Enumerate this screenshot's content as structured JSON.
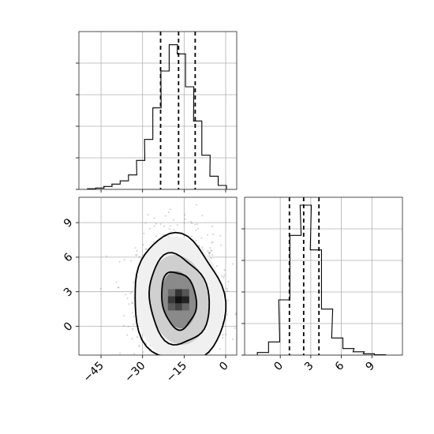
{
  "chart_data": [
    {
      "type": "histogram",
      "panel": "top-left",
      "variable": "x",
      "bin_centers": [
        -48.4,
        -45.4,
        -42.5,
        -39.6,
        -36.6,
        -33.6,
        -30.7,
        -27.8,
        -24.8,
        -21.9,
        -18.9,
        -16.0,
        -13.0,
        -10.1,
        -7.1,
        -4.2,
        -1.2
      ],
      "counts": [
        0.5,
        1.0,
        2.2,
        4.0,
        6.5,
        11.0,
        22.0,
        38.0,
        62.0,
        90.0,
        110.0,
        103.0,
        78.0,
        52.0,
        26.0,
        10.0,
        3.0
      ],
      "quantile_lines": [
        -23.5,
        -17.0,
        -11.0
      ],
      "xlim": [
        -53,
        4
      ],
      "ylim": [
        0,
        120
      ],
      "ytick_values": [
        0,
        24,
        48,
        72,
        96
      ],
      "grid": true
    },
    {
      "type": "scatter-density",
      "panel": "bottom-left",
      "center": [
        -17,
        2.3
      ],
      "spread": [
        6.5,
        2.5
      ],
      "contour_levels": 3,
      "xlim": [
        -53,
        4
      ],
      "ylim": [
        -2.5,
        11.2
      ],
      "xticks": [
        "−45",
        "−30",
        "−15",
        "0"
      ],
      "xtick_values": [
        -45,
        -30,
        -15,
        0
      ],
      "yticks": [
        "0",
        "3",
        "6",
        "9"
      ],
      "ytick_values": [
        0,
        3,
        6,
        9
      ],
      "grid": true
    },
    {
      "type": "histogram",
      "panel": "bottom-right",
      "variable": "y",
      "bin_centers": [
        -1.7,
        -0.6,
        0.4,
        1.5,
        2.5,
        3.5,
        4.6,
        5.6,
        6.7,
        7.7,
        8.7,
        9.8
      ],
      "counts": [
        2.0,
        10.0,
        42.0,
        91.0,
        114.0,
        80.0,
        35.0,
        13.0,
        5.0,
        2.5,
        1.0,
        0.3
      ],
      "quantile_lines": [
        0.9,
        2.3,
        3.8
      ],
      "xlim": [
        -3.5,
        12.0
      ],
      "ylim": [
        0,
        120
      ],
      "xticks": [
        "0",
        "3",
        "6",
        "9"
      ],
      "xtick_values": [
        0,
        3,
        6,
        9
      ],
      "ytick_values": [
        0,
        24,
        48,
        72,
        96
      ],
      "grid": true
    }
  ]
}
